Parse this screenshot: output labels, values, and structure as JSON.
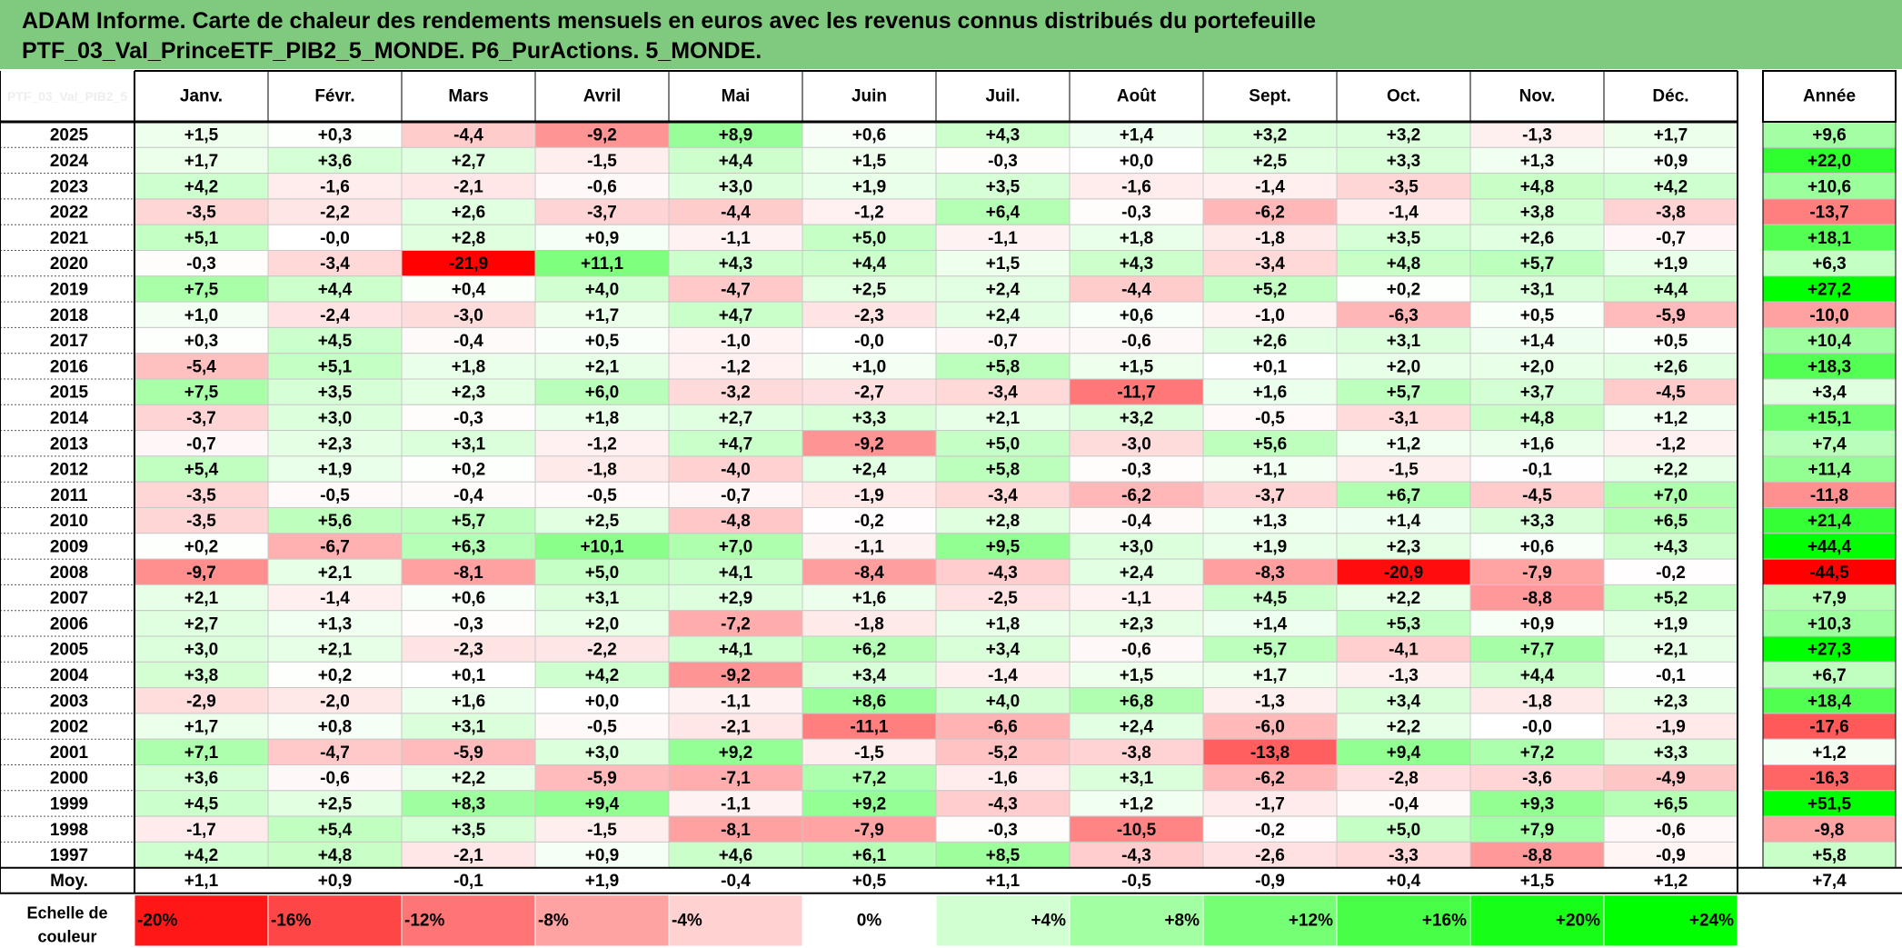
{
  "title": {
    "line1": "ADAM Informe. Carte de chaleur des rendements mensuels en euros avec les revenus connus distribués du portefeuille",
    "line2": "PTF_03_Val_PrinceETF_PIB2_5_MONDE. P6_PurActions. 5_MONDE."
  },
  "chart_data": {
    "type": "heatmap",
    "title": "ADAM Informe. Carte de chaleur des rendements mensuels en euros avec les revenus connus distribués du portefeuille PTF_03_Val_PrinceETF_PIB2_5_MONDE. P6_PurActions. 5_MONDE.",
    "corner_label": "PTF_03_Val_PIB2_5",
    "columns": [
      "Janv.",
      "Févr.",
      "Mars",
      "Avril",
      "Mai",
      "Juin",
      "Juil.",
      "Août",
      "Sept.",
      "Oct.",
      "Nov.",
      "Déc."
    ],
    "year_column": "Année",
    "rows": [
      {
        "year": "2025",
        "values": [
          "+1,5",
          "+0,3",
          "-4,4",
          "-9,2",
          "+8,9",
          "+0,6",
          "+4,3",
          "+1,4",
          "+3,2",
          "+3,2",
          "-1,3",
          "+1,7"
        ],
        "annual": "+9,6"
      },
      {
        "year": "2024",
        "values": [
          "+1,7",
          "+3,6",
          "+2,7",
          "-1,5",
          "+4,4",
          "+1,5",
          "-0,3",
          "+0,0",
          "+2,5",
          "+3,3",
          "+1,3",
          "+0,9"
        ],
        "annual": "+22,0"
      },
      {
        "year": "2023",
        "values": [
          "+4,2",
          "-1,6",
          "-2,1",
          "-0,6",
          "+3,0",
          "+1,9",
          "+3,5",
          "-1,6",
          "-1,4",
          "-3,5",
          "+4,8",
          "+4,2"
        ],
        "annual": "+10,6"
      },
      {
        "year": "2022",
        "values": [
          "-3,5",
          "-2,2",
          "+2,6",
          "-3,7",
          "-4,4",
          "-1,2",
          "+6,4",
          "-0,3",
          "-6,2",
          "-1,4",
          "+3,8",
          "-3,8"
        ],
        "annual": "-13,7"
      },
      {
        "year": "2021",
        "values": [
          "+5,1",
          "-0,0",
          "+2,8",
          "+0,9",
          "-1,1",
          "+5,0",
          "-1,1",
          "+1,8",
          "-1,8",
          "+3,5",
          "+2,6",
          "-0,7"
        ],
        "annual": "+18,1"
      },
      {
        "year": "2020",
        "values": [
          "-0,3",
          "-3,4",
          "-21,9",
          "+11,1",
          "+4,3",
          "+4,4",
          "+1,5",
          "+4,3",
          "-3,4",
          "+4,8",
          "+5,7",
          "+1,9"
        ],
        "annual": "+6,3"
      },
      {
        "year": "2019",
        "values": [
          "+7,5",
          "+4,4",
          "+0,4",
          "+4,0",
          "-4,7",
          "+2,5",
          "+2,4",
          "-4,4",
          "+5,2",
          "+0,2",
          "+3,1",
          "+4,4"
        ],
        "annual": "+27,2"
      },
      {
        "year": "2018",
        "values": [
          "+1,0",
          "-2,4",
          "-3,0",
          "+1,7",
          "+4,7",
          "-2,3",
          "+2,4",
          "+0,6",
          "-1,0",
          "-6,3",
          "+0,5",
          "-5,9"
        ],
        "annual": "-10,0"
      },
      {
        "year": "2017",
        "values": [
          "+0,3",
          "+4,5",
          "-0,4",
          "+0,5",
          "-1,0",
          "-0,0",
          "-0,7",
          "-0,6",
          "+2,6",
          "+3,1",
          "+1,4",
          "+0,5"
        ],
        "annual": "+10,4"
      },
      {
        "year": "2016",
        "values": [
          "-5,4",
          "+5,1",
          "+1,8",
          "+2,1",
          "-1,2",
          "+1,0",
          "+5,8",
          "+1,5",
          "+0,1",
          "+2,0",
          "+2,0",
          "+2,6"
        ],
        "annual": "+18,3"
      },
      {
        "year": "2015",
        "values": [
          "+7,5",
          "+3,5",
          "+2,3",
          "+6,0",
          "-3,2",
          "-2,7",
          "-3,4",
          "-11,7",
          "+1,6",
          "+5,7",
          "+3,7",
          "-4,5"
        ],
        "annual": "+3,4"
      },
      {
        "year": "2014",
        "values": [
          "-3,7",
          "+3,0",
          "-0,3",
          "+1,8",
          "+2,7",
          "+3,3",
          "+2,1",
          "+3,2",
          "-0,5",
          "-3,1",
          "+4,8",
          "+1,2"
        ],
        "annual": "+15,1"
      },
      {
        "year": "2013",
        "values": [
          "-0,7",
          "+2,3",
          "+3,1",
          "-1,2",
          "+4,7",
          "-9,2",
          "+5,0",
          "-3,0",
          "+5,6",
          "+1,2",
          "+1,6",
          "-1,2"
        ],
        "annual": "+7,4"
      },
      {
        "year": "2012",
        "values": [
          "+5,4",
          "+1,9",
          "+0,2",
          "-1,8",
          "-4,0",
          "+2,4",
          "+5,8",
          "-0,3",
          "+1,1",
          "-1,5",
          "-0,1",
          "+2,2"
        ],
        "annual": "+11,4"
      },
      {
        "year": "2011",
        "values": [
          "-3,5",
          "-0,5",
          "-0,4",
          "-0,5",
          "-0,7",
          "-1,9",
          "-3,4",
          "-6,2",
          "-3,7",
          "+6,7",
          "-4,5",
          "+7,0"
        ],
        "annual": "-11,8"
      },
      {
        "year": "2010",
        "values": [
          "-3,5",
          "+5,6",
          "+5,7",
          "+2,5",
          "-4,8",
          "-0,2",
          "+2,8",
          "-0,4",
          "+1,3",
          "+1,4",
          "+3,3",
          "+6,5"
        ],
        "annual": "+21,4"
      },
      {
        "year": "2009",
        "values": [
          "+0,2",
          "-6,7",
          "+6,3",
          "+10,1",
          "+7,0",
          "-1,1",
          "+9,5",
          "+3,0",
          "+1,9",
          "+2,3",
          "+0,6",
          "+4,3"
        ],
        "annual": "+44,4"
      },
      {
        "year": "2008",
        "values": [
          "-9,7",
          "+2,1",
          "-8,1",
          "+5,0",
          "+4,1",
          "-8,4",
          "-4,3",
          "+2,4",
          "-8,3",
          "-20,9",
          "-7,9",
          "-0,2"
        ],
        "annual": "-44,5"
      },
      {
        "year": "2007",
        "values": [
          "+2,1",
          "-1,4",
          "+0,6",
          "+3,1",
          "+2,9",
          "+1,6",
          "-2,5",
          "-1,1",
          "+4,5",
          "+2,2",
          "-8,8",
          "+5,2"
        ],
        "annual": "+7,9"
      },
      {
        "year": "2006",
        "values": [
          "+2,7",
          "+1,3",
          "-0,3",
          "+2,0",
          "-7,2",
          "-1,8",
          "+1,8",
          "+2,3",
          "+1,4",
          "+5,3",
          "+0,9",
          "+1,9"
        ],
        "annual": "+10,3"
      },
      {
        "year": "2005",
        "values": [
          "+3,0",
          "+2,1",
          "-2,3",
          "-2,2",
          "+4,1",
          "+6,2",
          "+3,4",
          "-0,6",
          "+5,7",
          "-4,1",
          "+7,7",
          "+2,1"
        ],
        "annual": "+27,3"
      },
      {
        "year": "2004",
        "values": [
          "+3,8",
          "+0,2",
          "+0,1",
          "+4,2",
          "-9,2",
          "+3,4",
          "-1,4",
          "+1,5",
          "+1,7",
          "-1,3",
          "+4,4",
          "-0,1"
        ],
        "annual": "+6,7"
      },
      {
        "year": "2003",
        "values": [
          "-2,9",
          "-2,0",
          "+1,6",
          "+0,0",
          "-1,1",
          "+8,6",
          "+4,0",
          "+6,8",
          "-1,3",
          "+3,4",
          "-1,8",
          "+2,3"
        ],
        "annual": "+18,4"
      },
      {
        "year": "2002",
        "values": [
          "+1,7",
          "+0,8",
          "+3,1",
          "-0,5",
          "-2,1",
          "-11,1",
          "-6,6",
          "+2,4",
          "-6,0",
          "+2,2",
          "-0,0",
          "-1,9"
        ],
        "annual": "-17,6"
      },
      {
        "year": "2001",
        "values": [
          "+7,1",
          "-4,7",
          "-5,9",
          "+3,0",
          "+9,2",
          "-1,5",
          "-5,2",
          "-3,8",
          "-13,8",
          "+9,4",
          "+7,2",
          "+3,3"
        ],
        "annual": "+1,2"
      },
      {
        "year": "2000",
        "values": [
          "+3,6",
          "-0,6",
          "+2,2",
          "-5,9",
          "-7,1",
          "+7,2",
          "-1,6",
          "+3,1",
          "-6,2",
          "-2,8",
          "-3,6",
          "-4,9"
        ],
        "annual": "-16,3"
      },
      {
        "year": "1999",
        "values": [
          "+4,5",
          "+2,5",
          "+8,3",
          "+9,4",
          "-1,1",
          "+9,2",
          "-4,3",
          "+1,2",
          "-1,7",
          "-0,4",
          "+9,3",
          "+6,5"
        ],
        "annual": "+51,5"
      },
      {
        "year": "1998",
        "values": [
          "-1,7",
          "+5,4",
          "+3,5",
          "-1,5",
          "-8,1",
          "-7,9",
          "-0,3",
          "-10,5",
          "-0,2",
          "+5,0",
          "+7,9",
          "-0,6"
        ],
        "annual": "-9,8"
      },
      {
        "year": "1997",
        "values": [
          "+4,2",
          "+4,8",
          "-2,1",
          "+0,9",
          "+4,6",
          "+6,1",
          "+8,5",
          "-4,3",
          "-2,6",
          "-3,3",
          "-8,8",
          "-0,9"
        ],
        "annual": "+5,8"
      }
    ],
    "average": {
      "label": "Moy.",
      "values": [
        "+1,1",
        "+0,9",
        "-0,1",
        "+1,9",
        "-0,4",
        "+0,5",
        "+1,1",
        "-0,5",
        "-0,9",
        "+0,4",
        "+1,5",
        "+1,2"
      ],
      "annual": "+7,4"
    },
    "scale": {
      "label_line1": "Echelle de",
      "label_line2": "couleur",
      "steps": [
        {
          "label": "-20%",
          "value": -20
        },
        {
          "label": "-16%",
          "value": -16
        },
        {
          "label": "-12%",
          "value": -12
        },
        {
          "label": "-8%",
          "value": -8
        },
        {
          "label": "-4%",
          "value": -4
        },
        {
          "label": "0%",
          "value": 0
        },
        {
          "label": "+4%",
          "value": 4
        },
        {
          "label": "+8%",
          "value": 8
        },
        {
          "label": "+12%",
          "value": 12
        },
        {
          "label": "+16%",
          "value": 16
        },
        {
          "label": "+20%",
          "value": 20
        },
        {
          "label": "+24%",
          "value": 24
        }
      ]
    },
    "colors": {
      "negative": "#ff0000",
      "neutral": "#ffffff",
      "positive": "#00ff00",
      "title_background": "#7fca7f",
      "grid": "#c8c8c8",
      "frame": "#000000"
    }
  }
}
